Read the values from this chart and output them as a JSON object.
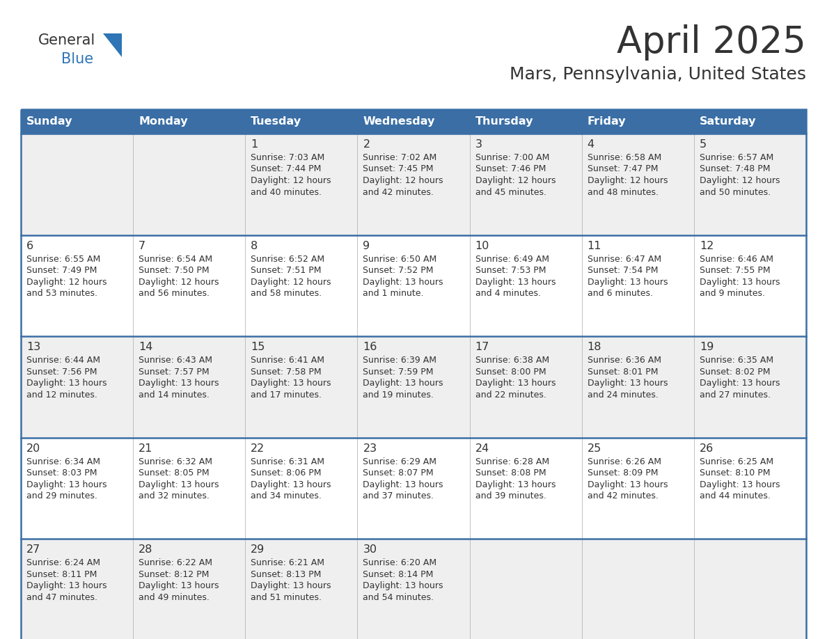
{
  "title": "April 2025",
  "subtitle": "Mars, Pennsylvania, United States",
  "header_bg_color": "#3A6EA5",
  "header_text_color": "#FFFFFF",
  "row_bg_colors": [
    "#EFEFEF",
    "#FFFFFF",
    "#EFEFEF",
    "#FFFFFF",
    "#EFEFEF"
  ],
  "border_color": "#3A6EA5",
  "separator_color": "#3A6EA5",
  "text_color": "#333333",
  "days_of_week": [
    "Sunday",
    "Monday",
    "Tuesday",
    "Wednesday",
    "Thursday",
    "Friday",
    "Saturday"
  ],
  "weeks": [
    [
      {
        "day": "",
        "lines": []
      },
      {
        "day": "",
        "lines": []
      },
      {
        "day": "1",
        "lines": [
          "Sunrise: 7:03 AM",
          "Sunset: 7:44 PM",
          "Daylight: 12 hours",
          "and 40 minutes."
        ]
      },
      {
        "day": "2",
        "lines": [
          "Sunrise: 7:02 AM",
          "Sunset: 7:45 PM",
          "Daylight: 12 hours",
          "and 42 minutes."
        ]
      },
      {
        "day": "3",
        "lines": [
          "Sunrise: 7:00 AM",
          "Sunset: 7:46 PM",
          "Daylight: 12 hours",
          "and 45 minutes."
        ]
      },
      {
        "day": "4",
        "lines": [
          "Sunrise: 6:58 AM",
          "Sunset: 7:47 PM",
          "Daylight: 12 hours",
          "and 48 minutes."
        ]
      },
      {
        "day": "5",
        "lines": [
          "Sunrise: 6:57 AM",
          "Sunset: 7:48 PM",
          "Daylight: 12 hours",
          "and 50 minutes."
        ]
      }
    ],
    [
      {
        "day": "6",
        "lines": [
          "Sunrise: 6:55 AM",
          "Sunset: 7:49 PM",
          "Daylight: 12 hours",
          "and 53 minutes."
        ]
      },
      {
        "day": "7",
        "lines": [
          "Sunrise: 6:54 AM",
          "Sunset: 7:50 PM",
          "Daylight: 12 hours",
          "and 56 minutes."
        ]
      },
      {
        "day": "8",
        "lines": [
          "Sunrise: 6:52 AM",
          "Sunset: 7:51 PM",
          "Daylight: 12 hours",
          "and 58 minutes."
        ]
      },
      {
        "day": "9",
        "lines": [
          "Sunrise: 6:50 AM",
          "Sunset: 7:52 PM",
          "Daylight: 13 hours",
          "and 1 minute."
        ]
      },
      {
        "day": "10",
        "lines": [
          "Sunrise: 6:49 AM",
          "Sunset: 7:53 PM",
          "Daylight: 13 hours",
          "and 4 minutes."
        ]
      },
      {
        "day": "11",
        "lines": [
          "Sunrise: 6:47 AM",
          "Sunset: 7:54 PM",
          "Daylight: 13 hours",
          "and 6 minutes."
        ]
      },
      {
        "day": "12",
        "lines": [
          "Sunrise: 6:46 AM",
          "Sunset: 7:55 PM",
          "Daylight: 13 hours",
          "and 9 minutes."
        ]
      }
    ],
    [
      {
        "day": "13",
        "lines": [
          "Sunrise: 6:44 AM",
          "Sunset: 7:56 PM",
          "Daylight: 13 hours",
          "and 12 minutes."
        ]
      },
      {
        "day": "14",
        "lines": [
          "Sunrise: 6:43 AM",
          "Sunset: 7:57 PM",
          "Daylight: 13 hours",
          "and 14 minutes."
        ]
      },
      {
        "day": "15",
        "lines": [
          "Sunrise: 6:41 AM",
          "Sunset: 7:58 PM",
          "Daylight: 13 hours",
          "and 17 minutes."
        ]
      },
      {
        "day": "16",
        "lines": [
          "Sunrise: 6:39 AM",
          "Sunset: 7:59 PM",
          "Daylight: 13 hours",
          "and 19 minutes."
        ]
      },
      {
        "day": "17",
        "lines": [
          "Sunrise: 6:38 AM",
          "Sunset: 8:00 PM",
          "Daylight: 13 hours",
          "and 22 minutes."
        ]
      },
      {
        "day": "18",
        "lines": [
          "Sunrise: 6:36 AM",
          "Sunset: 8:01 PM",
          "Daylight: 13 hours",
          "and 24 minutes."
        ]
      },
      {
        "day": "19",
        "lines": [
          "Sunrise: 6:35 AM",
          "Sunset: 8:02 PM",
          "Daylight: 13 hours",
          "and 27 minutes."
        ]
      }
    ],
    [
      {
        "day": "20",
        "lines": [
          "Sunrise: 6:34 AM",
          "Sunset: 8:03 PM",
          "Daylight: 13 hours",
          "and 29 minutes."
        ]
      },
      {
        "day": "21",
        "lines": [
          "Sunrise: 6:32 AM",
          "Sunset: 8:05 PM",
          "Daylight: 13 hours",
          "and 32 minutes."
        ]
      },
      {
        "day": "22",
        "lines": [
          "Sunrise: 6:31 AM",
          "Sunset: 8:06 PM",
          "Daylight: 13 hours",
          "and 34 minutes."
        ]
      },
      {
        "day": "23",
        "lines": [
          "Sunrise: 6:29 AM",
          "Sunset: 8:07 PM",
          "Daylight: 13 hours",
          "and 37 minutes."
        ]
      },
      {
        "day": "24",
        "lines": [
          "Sunrise: 6:28 AM",
          "Sunset: 8:08 PM",
          "Daylight: 13 hours",
          "and 39 minutes."
        ]
      },
      {
        "day": "25",
        "lines": [
          "Sunrise: 6:26 AM",
          "Sunset: 8:09 PM",
          "Daylight: 13 hours",
          "and 42 minutes."
        ]
      },
      {
        "day": "26",
        "lines": [
          "Sunrise: 6:25 AM",
          "Sunset: 8:10 PM",
          "Daylight: 13 hours",
          "and 44 minutes."
        ]
      }
    ],
    [
      {
        "day": "27",
        "lines": [
          "Sunrise: 6:24 AM",
          "Sunset: 8:11 PM",
          "Daylight: 13 hours",
          "and 47 minutes."
        ]
      },
      {
        "day": "28",
        "lines": [
          "Sunrise: 6:22 AM",
          "Sunset: 8:12 PM",
          "Daylight: 13 hours",
          "and 49 minutes."
        ]
      },
      {
        "day": "29",
        "lines": [
          "Sunrise: 6:21 AM",
          "Sunset: 8:13 PM",
          "Daylight: 13 hours",
          "and 51 minutes."
        ]
      },
      {
        "day": "30",
        "lines": [
          "Sunrise: 6:20 AM",
          "Sunset: 8:14 PM",
          "Daylight: 13 hours",
          "and 54 minutes."
        ]
      },
      {
        "day": "",
        "lines": []
      },
      {
        "day": "",
        "lines": []
      },
      {
        "day": "",
        "lines": []
      }
    ]
  ],
  "logo_general_color": "#333333",
  "logo_blue_color": "#2E75B6",
  "logo_triangle_color": "#2E75B6",
  "title_color": "#333333",
  "subtitle_color": "#333333"
}
